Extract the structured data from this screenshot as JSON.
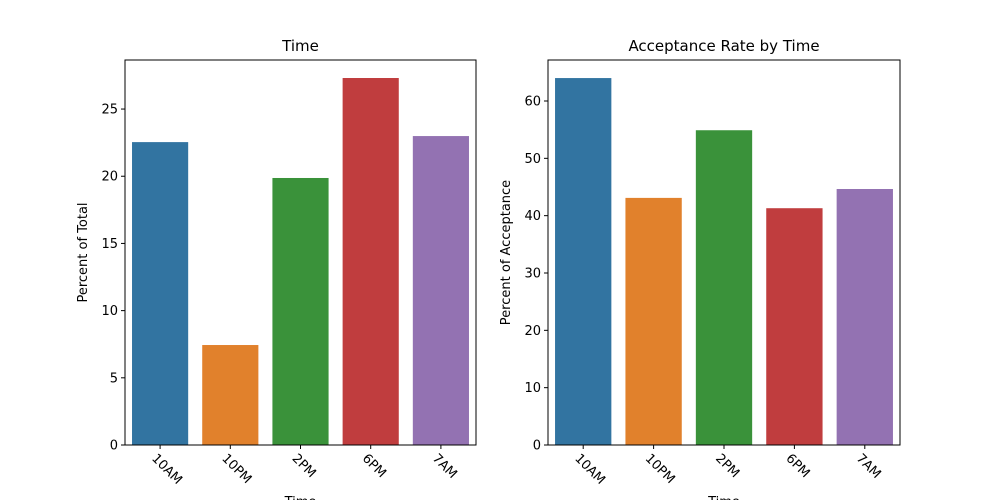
{
  "chart_data": [
    {
      "type": "bar",
      "title": "Time",
      "x_label": "Time",
      "y_label": "Percent of Total",
      "categories": [
        "10AM",
        "10PM",
        "2PM",
        "6PM",
        "7AM"
      ],
      "values": [
        22.54,
        7.44,
        19.87,
        27.31,
        22.99
      ],
      "colors": [
        "#3274a1",
        "#e1812c",
        "#3a923a",
        "#c03d3e",
        "#9372b2"
      ],
      "ylim": [
        0,
        28.65
      ],
      "yticks": [
        0,
        5,
        10,
        15,
        20,
        25
      ]
    },
    {
      "type": "bar",
      "title": "Acceptance Rate by Time",
      "x_label": "Time",
      "y_label": "Percent of Acceptance",
      "categories": [
        "10AM",
        "10PM",
        "2PM",
        "6PM",
        "7AM"
      ],
      "values": [
        64.0,
        43.1,
        54.9,
        41.3,
        44.65
      ],
      "colors": [
        "#3274a1",
        "#e1812c",
        "#3a923a",
        "#c03d3e",
        "#9372b2"
      ],
      "ylim": [
        0,
        67.15
      ],
      "yticks": [
        0,
        10,
        20,
        30,
        40,
        50,
        60
      ]
    }
  ]
}
